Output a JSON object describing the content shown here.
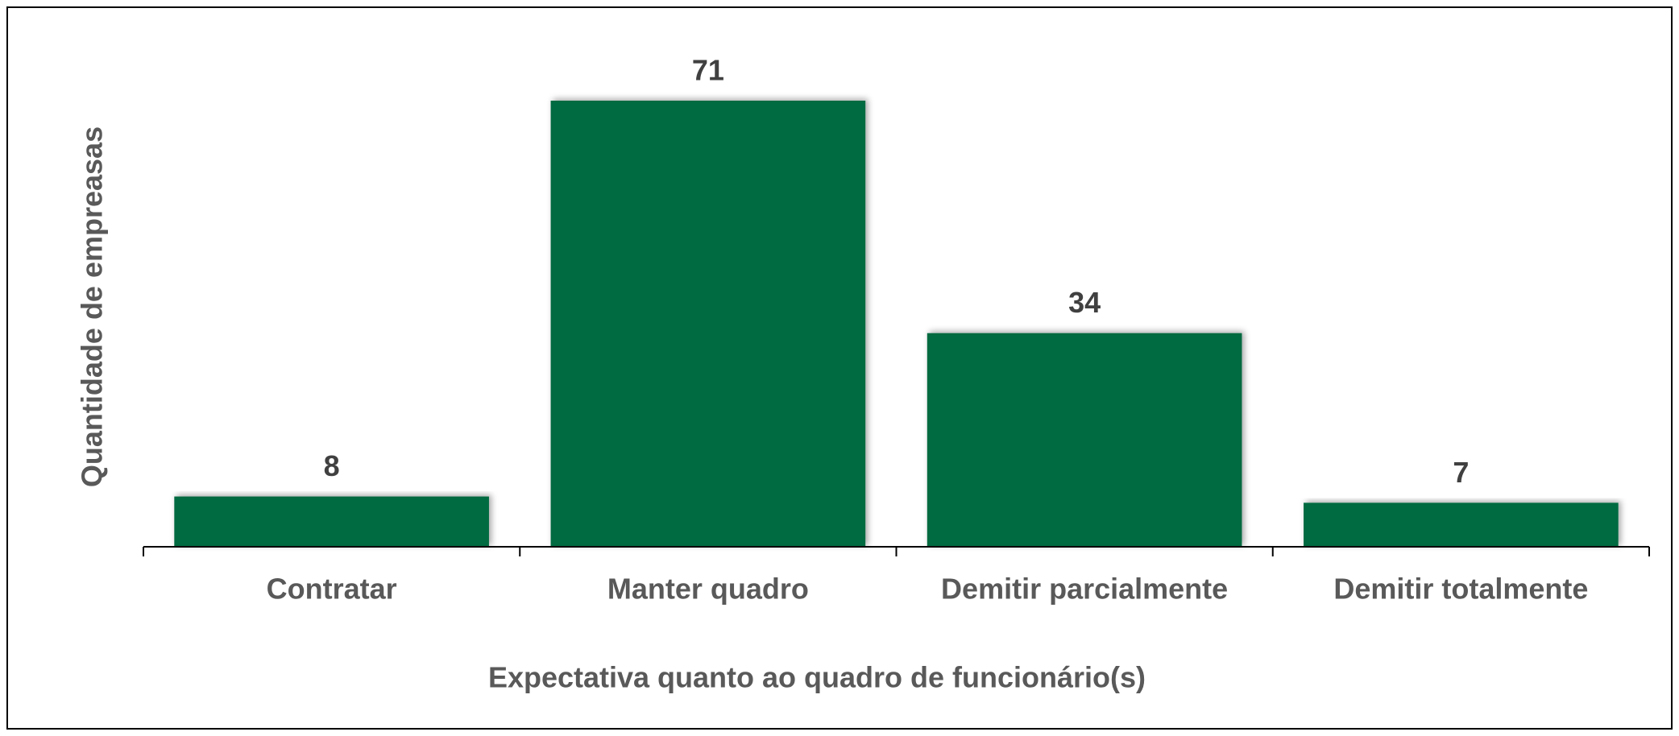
{
  "chart_data": {
    "type": "bar",
    "x_label": "Expectativa quanto ao quadro de funcionário(s)",
    "y_label": "Quantidade de empreasas",
    "categories": [
      "Contratar",
      "Manter quadro",
      "Demitir parcialmente",
      "Demitir totalmente"
    ],
    "values": [
      8,
      71,
      34,
      7
    ],
    "color": "#046a41"
  }
}
